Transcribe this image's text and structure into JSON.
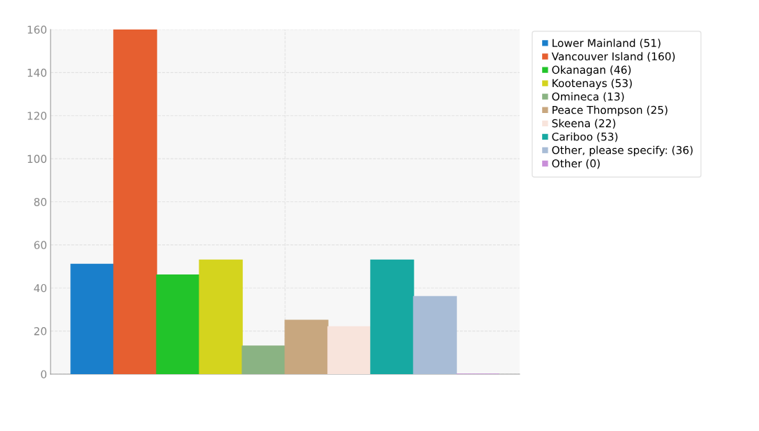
{
  "chart_data": {
    "type": "bar",
    "categories": [
      null
    ],
    "ylim": [
      0,
      160
    ],
    "yticks": [
      0,
      20,
      40,
      60,
      80,
      100,
      120,
      140,
      160
    ],
    "grid": true,
    "legend": "top right",
    "marker": "square",
    "series": [
      {
        "name": "Lower Mainland (51)",
        "color": "#1a7fcb",
        "values": [
          51
        ]
      },
      {
        "name": "Vancouver Island (160)",
        "color": "#e65f30",
        "values": [
          160
        ]
      },
      {
        "name": "Okanagan (46)",
        "color": "#22c42a",
        "values": [
          46
        ]
      },
      {
        "name": "Kootenays (53)",
        "color": "#d4d41e",
        "values": [
          53
        ]
      },
      {
        "name": "Omineca (13)",
        "color": "#8ab383",
        "values": [
          13
        ]
      },
      {
        "name": "Peace Thompson (25)",
        "color": "#c8a77f",
        "values": [
          25
        ]
      },
      {
        "name": "Skeena (22)",
        "color": "#f8e4dc",
        "values": [
          22
        ]
      },
      {
        "name": "Cariboo (53)",
        "color": "#17a9a2",
        "values": [
          53
        ]
      },
      {
        "name": "Other, please specify: (36)",
        "color": "#a8bcd6",
        "values": [
          36
        ]
      },
      {
        "name": "Other (0)",
        "color": "#c98fd9",
        "values": [
          0
        ]
      }
    ]
  }
}
